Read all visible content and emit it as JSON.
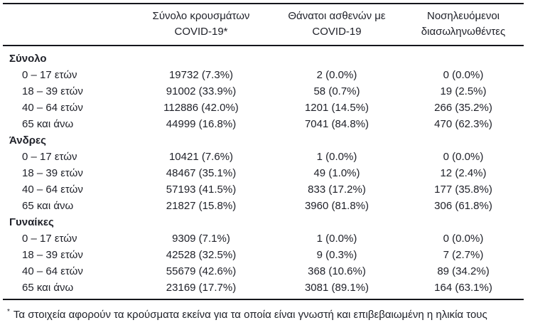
{
  "table": {
    "header": {
      "cases": {
        "line1": "Σύνολο κρουσμάτων",
        "line2": "COVID-19*"
      },
      "deaths": {
        "line1": "Θάνατοι ασθενών με",
        "line2": "COVID-19"
      },
      "intubated": {
        "line1": "Νοσηλευόμενοι",
        "line2": "διασωληνωθέντες"
      }
    },
    "sections": [
      {
        "title": "Σύνολο",
        "rows": [
          {
            "label": "0 – 17 ετών",
            "cases": "19732 (7.3%)",
            "deaths": "2 (0.0%)",
            "intubated": "0 (0.0%)"
          },
          {
            "label": "18 – 39 ετών",
            "cases": "91002 (33.9%)",
            "deaths": "58 (0.7%)",
            "intubated": "19 (2.5%)"
          },
          {
            "label": "40 – 64 ετών",
            "cases": "112886 (42.0%)",
            "deaths": "1201 (14.5%)",
            "intubated": "266 (35.2%)"
          },
          {
            "label": "65 και άνω",
            "cases": "44999 (16.8%)",
            "deaths": "7041 (84.8%)",
            "intubated": "470 (62.3%)"
          }
        ]
      },
      {
        "title": "Άνδρες",
        "rows": [
          {
            "label": "0 – 17 ετών",
            "cases": "10421 (7.6%)",
            "deaths": "1 (0.0%)",
            "intubated": "0 (0.0%)"
          },
          {
            "label": "18 – 39 ετών",
            "cases": "48467 (35.1%)",
            "deaths": "49 (1.0%)",
            "intubated": "12 (2.4%)"
          },
          {
            "label": "40 – 64 ετών",
            "cases": "57193 (41.5%)",
            "deaths": "833 (17.2%)",
            "intubated": "177 (35.8%)"
          },
          {
            "label": "65 και άνω",
            "cases": "21827 (15.8%)",
            "deaths": "3960 (81.8%)",
            "intubated": "306 (61.8%)"
          }
        ]
      },
      {
        "title": "Γυναίκες",
        "rows": [
          {
            "label": "0 – 17 ετών",
            "cases": "9309 (7.1%)",
            "deaths": "1 (0.0%)",
            "intubated": "0 (0.0%)"
          },
          {
            "label": "18 – 39 ετών",
            "cases": "42528 (32.5%)",
            "deaths": "9 (0.3%)",
            "intubated": "7 (2.7%)"
          },
          {
            "label": "40 – 64 ετών",
            "cases": "55679 (42.6%)",
            "deaths": "368 (10.6%)",
            "intubated": "89 (34.2%)"
          },
          {
            "label": "65 και άνω",
            "cases": "23169 (17.7%)",
            "deaths": "3081 (89.1%)",
            "intubated": "164 (63.1%)"
          }
        ]
      }
    ],
    "footnote": {
      "marker": "*",
      "text": "Τα στοιχεία αφορούν τα κρούσματα εκείνα για τα οποία είναι γνωστή και επιβεβαιωμένη η ηλικία τους"
    }
  }
}
